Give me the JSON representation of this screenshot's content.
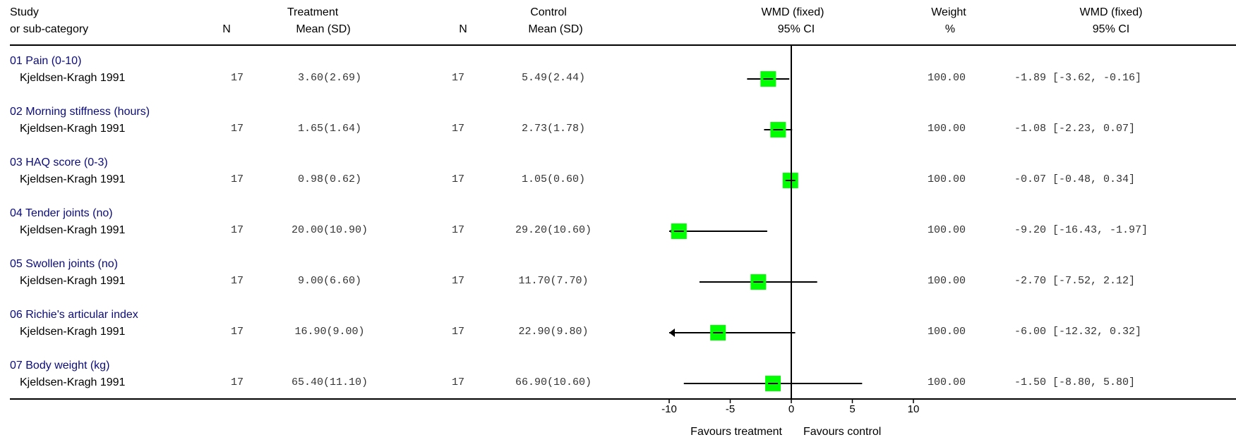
{
  "header": {
    "study_l1": "Study",
    "study_l2": "or sub-category",
    "n": "N",
    "treat_l1": "Treatment",
    "treat_l2": "Mean (SD)",
    "ctrl_l1": "Control",
    "ctrl_l2": "Mean (SD)",
    "wmd_l1": "WMD (fixed)",
    "wmd_l2": "95% CI",
    "weight_l1": "Weight",
    "weight_l2": "%",
    "wmd2_l1": "WMD (fixed)",
    "wmd2_l2": "95% CI"
  },
  "colors": {
    "box": "#00ff00",
    "category": "#0b0b7a"
  },
  "chart_data": {
    "type": "forest",
    "xlim": [
      -10,
      10
    ],
    "ticks": [
      "-10",
      "-5",
      "0",
      "5",
      "10"
    ],
    "tick_values": [
      -10,
      -5,
      0,
      5,
      10
    ],
    "favours_left": "Favours treatment",
    "favours_right": "Favours control",
    "rows": [
      {
        "category": "01 Pain (0-10)",
        "study": "Kjeldsen-Kragh 1991",
        "n_t": "17",
        "treat": "3.60(2.69)",
        "n_c": "17",
        "ctrl": "5.49(2.44)",
        "weight": "100.00",
        "ci_text": "-1.89 [-3.62, -0.16]",
        "est": -1.89,
        "lo": -3.62,
        "hi": -0.16
      },
      {
        "category": "02 Morning stiffness (hours)",
        "study": "Kjeldsen-Kragh 1991",
        "n_t": "17",
        "treat": "1.65(1.64)",
        "n_c": "17",
        "ctrl": "2.73(1.78)",
        "weight": "100.00",
        "ci_text": "-1.08 [-2.23, 0.07]",
        "est": -1.08,
        "lo": -2.23,
        "hi": 0.07
      },
      {
        "category": "03 HAQ score (0-3)",
        "study": "Kjeldsen-Kragh 1991",
        "n_t": "17",
        "treat": "0.98(0.62)",
        "n_c": "17",
        "ctrl": "1.05(0.60)",
        "weight": "100.00",
        "ci_text": "-0.07 [-0.48, 0.34]",
        "est": -0.07,
        "lo": -0.48,
        "hi": 0.34
      },
      {
        "category": "04 Tender joints (no)",
        "study": "Kjeldsen-Kragh 1991",
        "n_t": "17",
        "treat": "20.00(10.90)",
        "n_c": "17",
        "ctrl": "29.20(10.60)",
        "weight": "100.00",
        "ci_text": "-9.20 [-16.43, -1.97]",
        "est": -9.2,
        "lo": -16.43,
        "hi": -1.97
      },
      {
        "category": "05 Swollen joints (no)",
        "study": "Kjeldsen-Kragh 1991",
        "n_t": "17",
        "treat": "9.00(6.60)",
        "n_c": "17",
        "ctrl": "11.70(7.70)",
        "weight": "100.00",
        "ci_text": "-2.70 [-7.52, 2.12]",
        "est": -2.7,
        "lo": -7.52,
        "hi": 2.12
      },
      {
        "category": "06 Richie's articular index",
        "study": "Kjeldsen-Kragh 1991",
        "n_t": "17",
        "treat": "16.90(9.00)",
        "n_c": "17",
        "ctrl": "22.90(9.80)",
        "weight": "100.00",
        "ci_text": "-6.00 [-12.32, 0.32]",
        "est": -6.0,
        "lo": -12.32,
        "hi": 0.32
      },
      {
        "category": "07 Body weight (kg)",
        "study": "Kjeldsen-Kragh 1991",
        "n_t": "17",
        "treat": "65.40(11.10)",
        "n_c": "17",
        "ctrl": "66.90(10.60)",
        "weight": "100.00",
        "ci_text": "-1.50 [-8.80, 5.80]",
        "est": -1.5,
        "lo": -8.8,
        "hi": 5.8
      }
    ]
  }
}
